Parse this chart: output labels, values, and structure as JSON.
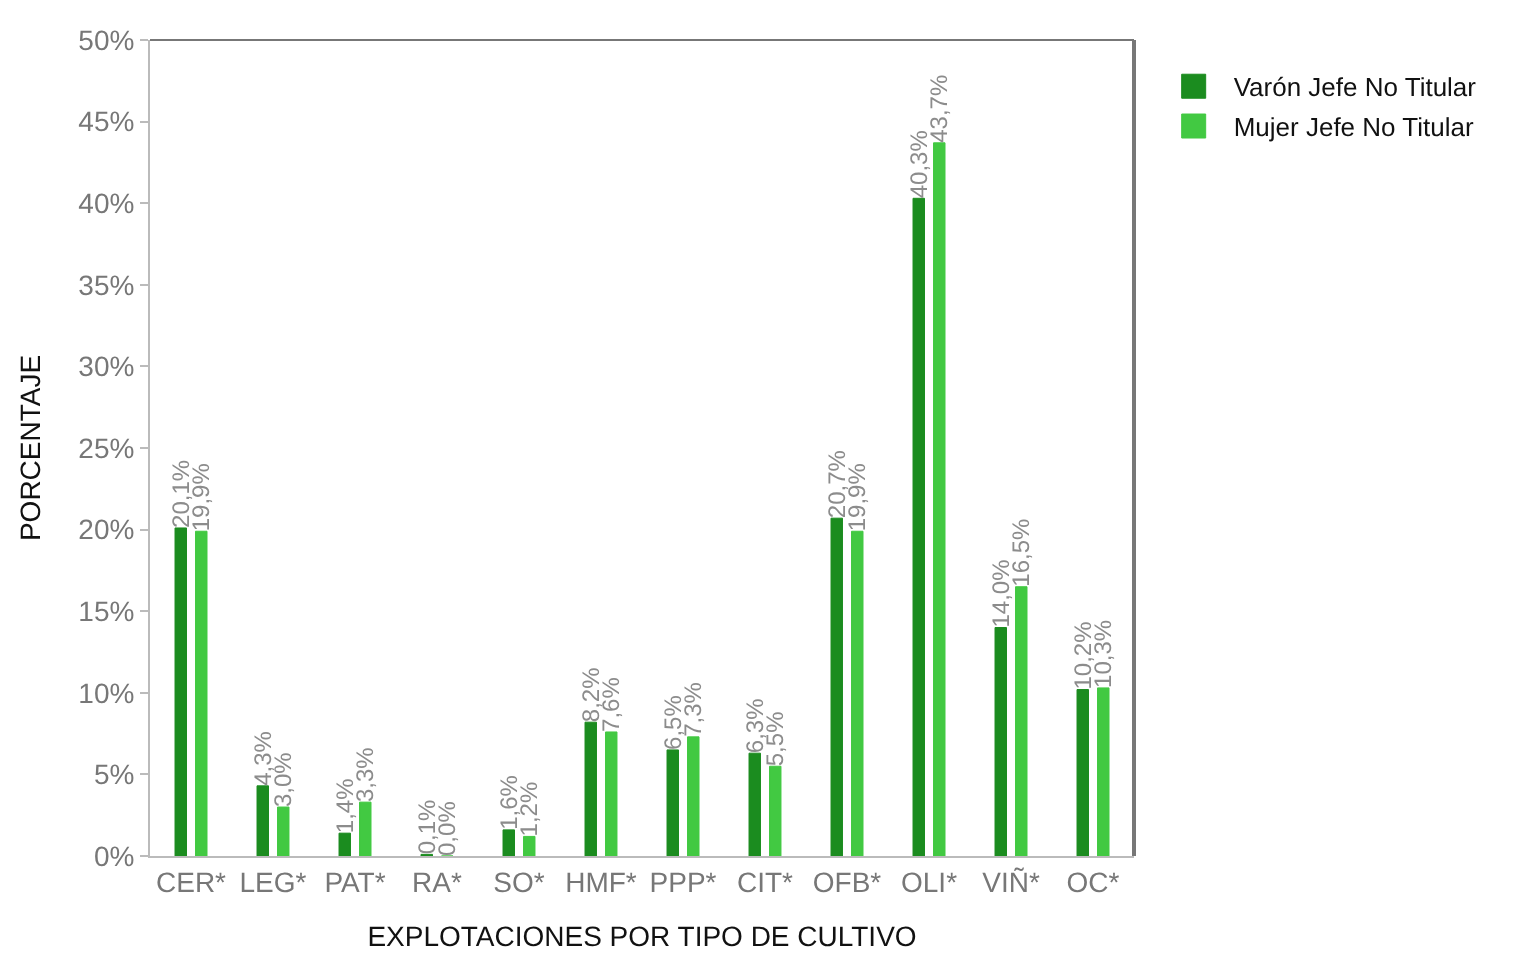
{
  "chart_data": {
    "type": "bar",
    "xlabel": "EXPLOTACIONES POR TIPO DE CULTIVO",
    "ylabel": "PORCENTAJE",
    "categories": [
      "CER*",
      "LEG*",
      "PAT*",
      "RA*",
      "SO*",
      "HMF*",
      "PPP*",
      "CIT*",
      "OFB*",
      "OLI*",
      "VIÑ*",
      "OC*"
    ],
    "series": [
      {
        "name": "Varón Jefe No Titular",
        "color": "#1b8c1f",
        "values": [
          20.1,
          4.3,
          1.4,
          0.1,
          1.6,
          8.2,
          6.5,
          6.3,
          20.7,
          40.3,
          14.0,
          10.2
        ],
        "value_labels": [
          "20,1%",
          "4,3%",
          "1,4%",
          "0,1%",
          "1,6%",
          "8,2%",
          "6,5%",
          "6,3%",
          "20,7%",
          "40,3%",
          "14,0%",
          "10,2%"
        ]
      },
      {
        "name": "Mujer Jefe No Titular",
        "color": "#42c942",
        "values": [
          19.9,
          3.0,
          3.3,
          0.0,
          1.2,
          7.6,
          7.3,
          5.5,
          19.9,
          43.7,
          16.5,
          10.3
        ],
        "value_labels": [
          "19,9%",
          "3,0%",
          "3,3%",
          "0,0%",
          "1,2%",
          "7,6%",
          "7,3%",
          "5,5%",
          "19,9%",
          "43,7%",
          "16,5%",
          "10,3%"
        ]
      }
    ],
    "ylim": [
      0,
      50
    ],
    "yticks": [
      {
        "value": 0,
        "label": "0%"
      },
      {
        "value": 5,
        "label": "5%"
      },
      {
        "value": 10,
        "label": "10%"
      },
      {
        "value": 15,
        "label": "15%"
      },
      {
        "value": 20,
        "label": "20%"
      },
      {
        "value": 25,
        "label": "25%"
      },
      {
        "value": 30,
        "label": "30%"
      },
      {
        "value": 35,
        "label": "35%"
      },
      {
        "value": 40,
        "label": "40%"
      },
      {
        "value": 45,
        "label": "45%"
      },
      {
        "value": 50,
        "label": "50%"
      }
    ],
    "legend": "top right"
  }
}
